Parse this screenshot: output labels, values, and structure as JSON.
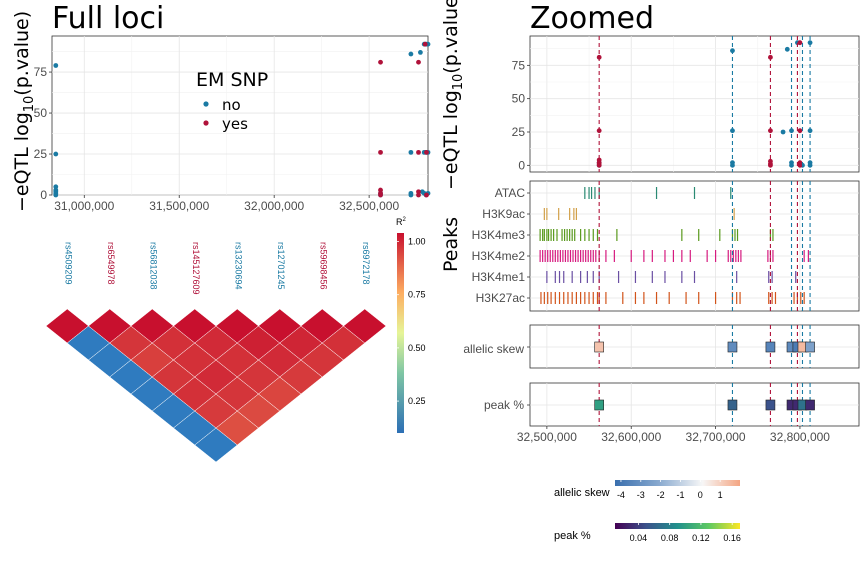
{
  "chart_data": [
    {
      "type": "scatter",
      "title": "Full loci",
      "ylabel_prefix": "−eQTL log",
      "ylabel_sub": "10",
      "ylabel_suffix": "(p.value)",
      "xlim": [
        30830000,
        32810000
      ],
      "ylim": [
        0,
        97
      ],
      "xticks": [
        31000000,
        31500000,
        32000000,
        32500000
      ],
      "xtick_labels": [
        "31,000,000",
        "31,500,000",
        "32,000,000",
        "32,500,000"
      ],
      "yticks": [
        0,
        25,
        50,
        75
      ],
      "ytick_labels": [
        "0",
        "25",
        "50",
        "75"
      ],
      "legend": {
        "title": "EM SNP",
        "items": [
          {
            "label": "no",
            "color": "#1a7aa3"
          },
          {
            "label": "yes",
            "color": "#b0123a"
          }
        ]
      },
      "series": [
        {
          "name": "no",
          "color": "#1a7aa3",
          "points": [
            [
              30850000,
              79
            ],
            [
              30850000,
              25
            ],
            [
              30850000,
              5
            ],
            [
              30850000,
              3
            ],
            [
              30850000,
              2
            ],
            [
              30850000,
              1
            ],
            [
              30850000,
              0
            ],
            [
              32560000,
              1
            ],
            [
              32560000,
              0
            ],
            [
              32720000,
              86
            ],
            [
              32720000,
              26
            ],
            [
              32720000,
              1
            ],
            [
              32720000,
              0
            ],
            [
              32770000,
              87
            ],
            [
              32790000,
              92
            ],
            [
              32800000,
              92
            ],
            [
              32810000,
              92
            ],
            [
              32790000,
              26
            ],
            [
              32800000,
              26
            ],
            [
              32810000,
              26
            ],
            [
              32790000,
              1
            ],
            [
              32800000,
              0
            ],
            [
              32810000,
              1
            ],
            [
              32780000,
              2
            ]
          ]
        },
        {
          "name": "yes",
          "color": "#b0123a",
          "points": [
            [
              32560000,
              81
            ],
            [
              32560000,
              26
            ],
            [
              32560000,
              3
            ],
            [
              32560000,
              1
            ],
            [
              32560000,
              0
            ],
            [
              32760000,
              81
            ],
            [
              32760000,
              26
            ],
            [
              32760000,
              2
            ],
            [
              32760000,
              0
            ],
            [
              32795000,
              92
            ],
            [
              32802000,
              26
            ],
            [
              32802000,
              0
            ]
          ]
        }
      ]
    },
    {
      "type": "scatter",
      "title": "Zoomed",
      "ylabel_prefix": "−eQTL log",
      "ylabel_sub": "10",
      "ylabel_suffix": "(p.value)",
      "xlim": [
        32480000,
        32870000
      ],
      "ylim": [
        -5,
        97
      ],
      "yticks": [
        0,
        25,
        50,
        75
      ],
      "ytick_labels": [
        "0",
        "25",
        "50",
        "75"
      ],
      "series": [
        {
          "name": "no",
          "color": "#1a7aa3",
          "points": [
            [
              32562000,
              2
            ],
            [
              32562000,
              0
            ],
            [
              32720000,
              86
            ],
            [
              32720000,
              26
            ],
            [
              32720000,
              2
            ],
            [
              32720000,
              0
            ],
            [
              32780000,
              25
            ],
            [
              32785000,
              87
            ],
            [
              32790000,
              26
            ],
            [
              32790000,
              2
            ],
            [
              32790000,
              0
            ],
            [
              32797000,
              92
            ],
            [
              32803000,
              0
            ],
            [
              32812000,
              92
            ],
            [
              32812000,
              26
            ],
            [
              32812000,
              2
            ],
            [
              32812000,
              0
            ]
          ]
        },
        {
          "name": "yes",
          "color": "#b0123a",
          "points": [
            [
              32562000,
              81
            ],
            [
              32562000,
              26
            ],
            [
              32562000,
              4
            ],
            [
              32562000,
              2
            ],
            [
              32562000,
              1
            ],
            [
              32562000,
              0
            ],
            [
              32765000,
              81
            ],
            [
              32765000,
              26
            ],
            [
              32765000,
              3
            ],
            [
              32765000,
              1
            ],
            [
              32765000,
              0
            ],
            [
              32800000,
              92
            ],
            [
              32800000,
              26
            ],
            [
              32800000,
              2
            ],
            [
              32800000,
              0
            ]
          ]
        }
      ]
    },
    {
      "type": "tracks",
      "ylabel": "Peaks",
      "xlim": [
        32480000,
        32870000
      ],
      "tracks": [
        {
          "name": "ATAC",
          "color": "#2a8a73",
          "positions": [
            32545000,
            32550000,
            32553000,
            32557000,
            32562000,
            32630000,
            32675000,
            32718000
          ]
        },
        {
          "name": "H3K9ac",
          "color": "#d2a14a",
          "positions": [
            32497000,
            32500000,
            32514000,
            32527000,
            32532000,
            32535000,
            32722000
          ]
        },
        {
          "name": "H3K4me3",
          "color": "#5a9a1e",
          "positions": [
            32492000,
            32495000,
            32497000,
            32500000,
            32502000,
            32505000,
            32508000,
            32512000,
            32518000,
            32521000,
            32524000,
            32527000,
            32530000,
            32533000,
            32540000,
            32545000,
            32550000,
            32555000,
            32560000,
            32583000,
            32660000,
            32680000,
            32705000,
            32720000,
            32723000,
            32726000,
            32765000,
            32768000
          ]
        },
        {
          "name": "H3K4me2",
          "color": "#d61a7f",
          "positions": [
            32492000,
            32495000,
            32498000,
            32501000,
            32504000,
            32507000,
            32510000,
            32513000,
            32516000,
            32519000,
            32522000,
            32525000,
            32528000,
            32531000,
            32534000,
            32537000,
            32540000,
            32543000,
            32546000,
            32549000,
            32552000,
            32555000,
            32558000,
            32562000,
            32570000,
            32580000,
            32600000,
            32615000,
            32625000,
            32640000,
            32650000,
            32660000,
            32670000,
            32690000,
            32700000,
            32715000,
            32718000,
            32721000,
            32724000,
            32727000,
            32730000,
            32762000,
            32765000,
            32768000,
            32805000,
            32810000
          ]
        },
        {
          "name": "H3K4me1",
          "color": "#6a4fa3",
          "positions": [
            32500000,
            32510000,
            32515000,
            32520000,
            32530000,
            32540000,
            32548000,
            32555000,
            32562000,
            32585000,
            32605000,
            32625000,
            32640000,
            32660000,
            32675000,
            32725000,
            32763000,
            32767000,
            32795000
          ]
        },
        {
          "name": "H3K27ac",
          "color": "#d2541a",
          "positions": [
            32493000,
            32497000,
            32501000,
            32505000,
            32510000,
            32515000,
            32520000,
            32525000,
            32530000,
            32535000,
            32540000,
            32545000,
            32550000,
            32555000,
            32560000,
            32562000,
            32570000,
            32590000,
            32605000,
            32615000,
            32630000,
            32645000,
            32665000,
            32680000,
            32700000,
            32720000,
            32725000,
            32729000,
            32763000,
            32767000,
            32771000,
            32793000,
            32797000,
            32801000,
            32805000
          ]
        }
      ],
      "lines": [
        {
          "x": 32562000,
          "color": "#b0123a"
        },
        {
          "x": 32720000,
          "color": "#1a7aa3"
        },
        {
          "x": 32765000,
          "color": "#b0123a"
        },
        {
          "x": 32790000,
          "color": "#1a7aa3"
        },
        {
          "x": 32797000,
          "color": "#b0123a"
        },
        {
          "x": 32803000,
          "color": "#1a7aa3"
        },
        {
          "x": 32812000,
          "color": "#1a7aa3"
        }
      ]
    },
    {
      "type": "tiles",
      "label": "allelic skew",
      "xlim": [
        32480000,
        32870000
      ],
      "tiles": [
        {
          "x": 32562000,
          "value": 1.3
        },
        {
          "x": 32720000,
          "value": -3.2
        },
        {
          "x": 32765000,
          "value": -3.5
        },
        {
          "x": 32790000,
          "value": -3.3
        },
        {
          "x": 32797000,
          "value": -3.8
        },
        {
          "x": 32803000,
          "value": 1.5
        },
        {
          "x": 32812000,
          "value": -2.4
        }
      ],
      "colorbar": {
        "title": "allelic skew",
        "range": [
          -4.3,
          2
        ],
        "ticks": [
          -4,
          -3,
          -2,
          -1,
          0,
          1
        ],
        "tick_labels": [
          "-4",
          "-3",
          "-2",
          "-1",
          "0",
          "1"
        ]
      }
    },
    {
      "type": "tiles",
      "label": "peak %",
      "xlim": [
        32480000,
        32870000
      ],
      "xticks": [
        32500000,
        32600000,
        32700000,
        32800000
      ],
      "xtick_labels": [
        "32,500,000",
        "32,600,000",
        "32,700,000",
        "32,800,000"
      ],
      "tiles": [
        {
          "x": 32562000,
          "value": 0.1
        },
        {
          "x": 32720000,
          "value": 0.06
        },
        {
          "x": 32765000,
          "value": 0.05
        },
        {
          "x": 32790000,
          "value": 0.03
        },
        {
          "x": 32797000,
          "value": 0.03
        },
        {
          "x": 32803000,
          "value": 0.07
        },
        {
          "x": 32812000,
          "value": 0.03
        }
      ],
      "colorbar": {
        "title": "peak %",
        "range": [
          0.01,
          0.17
        ],
        "ticks": [
          0.04,
          0.08,
          0.12,
          0.16
        ],
        "tick_labels": [
          "0.04",
          "0.08",
          "0.12",
          "0.16"
        ]
      }
    },
    {
      "type": "heatmap",
      "snps": [
        {
          "name": "rs4509209",
          "color": "#1a7aa3"
        },
        {
          "name": "rs6549978",
          "color": "#b0123a"
        },
        {
          "name": "rs56812038",
          "color": "#1a7aa3"
        },
        {
          "name": "rs145127609",
          "color": "#b0123a"
        },
        {
          "name": "rs13230694",
          "color": "#1a7aa3"
        },
        {
          "name": "rs12701245",
          "color": "#1a7aa3"
        },
        {
          "name": "rs59698456",
          "color": "#b0123a"
        },
        {
          "name": "rs6972178",
          "color": "#1a7aa3"
        }
      ],
      "r2": [
        [
          1.0,
          0.1,
          0.1,
          0.1,
          0.1,
          0.1,
          0.1,
          0.1
        ],
        [
          0.1,
          1.0,
          0.93,
          0.91,
          0.93,
          0.94,
          0.92,
          0.88
        ],
        [
          0.1,
          0.93,
          1.0,
          0.94,
          0.94,
          0.95,
          0.93,
          0.89
        ],
        [
          0.1,
          0.91,
          0.94,
          1.0,
          0.95,
          0.94,
          0.93,
          0.9
        ],
        [
          0.1,
          0.93,
          0.94,
          0.95,
          1.0,
          0.97,
          0.95,
          0.92
        ],
        [
          0.1,
          0.94,
          0.95,
          0.94,
          0.97,
          1.0,
          0.96,
          0.93
        ],
        [
          0.1,
          0.92,
          0.93,
          0.93,
          0.95,
          0.96,
          1.0,
          0.94
        ],
        [
          0.1,
          0.88,
          0.89,
          0.9,
          0.92,
          0.93,
          0.94,
          1.0
        ]
      ],
      "legend": {
        "title": "R",
        "title_sup": "2",
        "ticks": [
          0.25,
          0.5,
          0.75,
          1.0
        ],
        "tick_labels": [
          "0.25",
          "0.50",
          "0.75",
          "1.00"
        ]
      }
    }
  ]
}
